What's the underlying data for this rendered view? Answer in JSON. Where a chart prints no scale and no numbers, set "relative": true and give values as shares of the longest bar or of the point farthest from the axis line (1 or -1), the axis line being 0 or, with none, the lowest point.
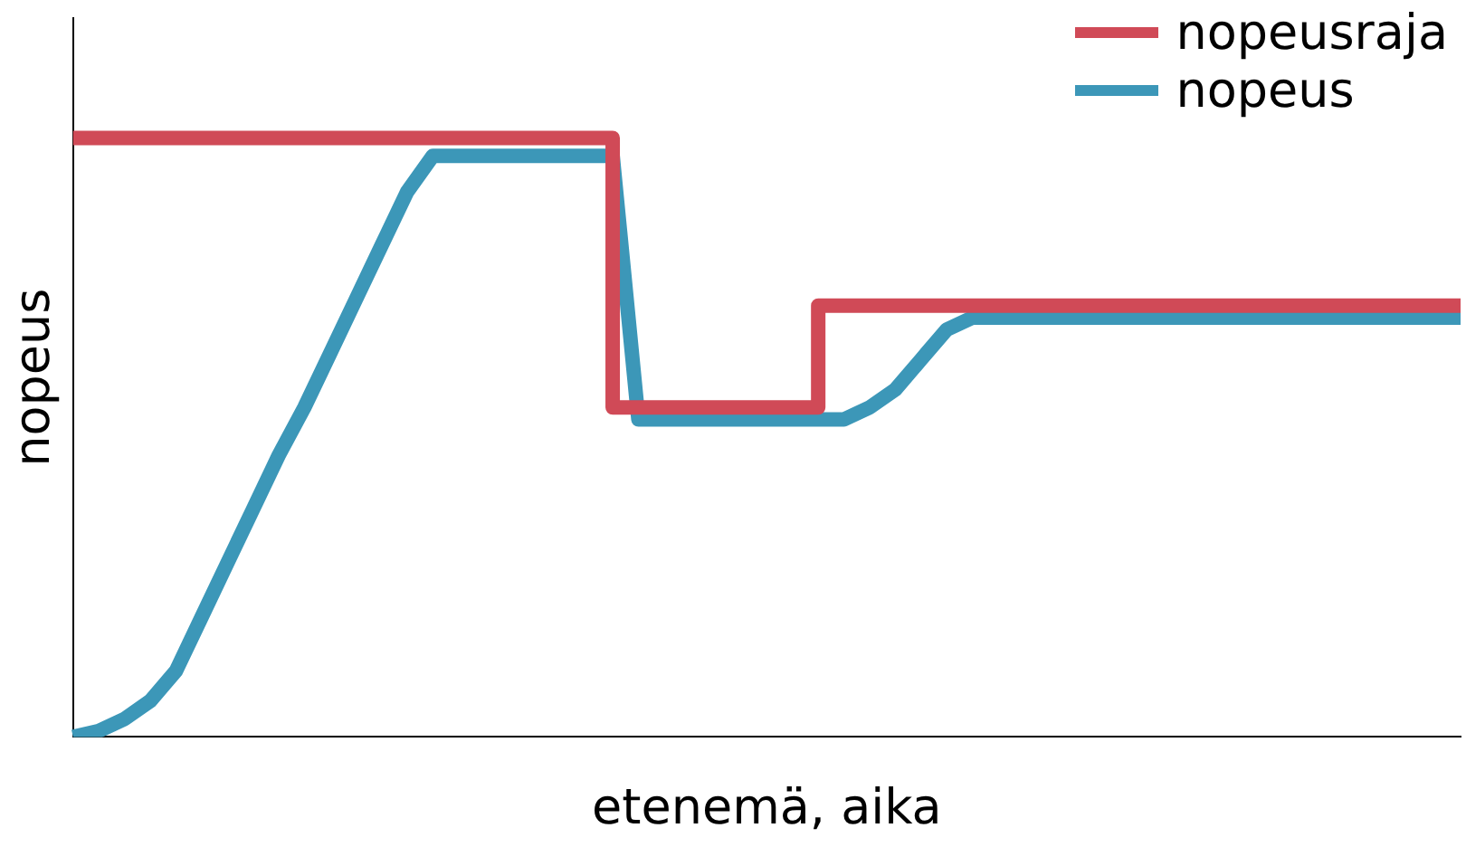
{
  "chart_data": {
    "type": "line",
    "relative": true,
    "xlabel": "etenemä, aika",
    "ylabel": "nopeus",
    "legend": "top right",
    "grid": false,
    "categories": [
      null,
      null,
      null,
      null,
      null,
      null,
      null,
      null,
      null,
      null,
      null,
      null,
      null,
      null,
      null,
      null,
      null,
      null,
      null,
      null,
      null,
      null,
      null,
      null,
      null,
      null,
      null,
      null,
      null,
      null,
      null,
      null,
      null,
      null,
      null,
      null,
      null,
      null,
      null,
      null,
      null,
      null,
      null,
      null,
      null,
      null,
      null,
      null,
      null,
      null,
      null,
      null,
      null,
      null,
      null
    ],
    "series": [
      {
        "name": "nopeusraja",
        "type": "step",
        "color": "#d04a57",
        "values": [
          1,
          1,
          1,
          1,
          1,
          1,
          1,
          1,
          1,
          1,
          1,
          1,
          1,
          1,
          1,
          1,
          1,
          1,
          1,
          1,
          1,
          1,
          0.55,
          0.55,
          0.55,
          0.55,
          0.55,
          0.55,
          0.55,
          0.55,
          0.72,
          0.72,
          0.72,
          0.72,
          0.72,
          0.72,
          0.72,
          0.72,
          0.72,
          0.72,
          0.72,
          0.72,
          0.72,
          0.72,
          0.72,
          0.72,
          0.72,
          0.72,
          0.72,
          0.72,
          0.72,
          0.72,
          0.72,
          0.72,
          0.72
        ]
      },
      {
        "name": "nopeus",
        "color": "#3c97b8",
        "values": [
          0,
          0.01,
          0.03,
          0.06,
          0.11,
          0.2,
          0.29,
          0.38,
          0.47,
          0.55,
          0.64,
          0.73,
          0.82,
          0.91,
          0.97,
          0.97,
          0.97,
          0.97,
          0.97,
          0.97,
          0.97,
          0.97,
          0.53,
          0.53,
          0.53,
          0.53,
          0.53,
          0.53,
          0.53,
          0.53,
          0.53,
          0.55,
          0.58,
          0.63,
          0.68,
          0.7,
          0.7,
          0.7,
          0.7,
          0.7,
          0.7,
          0.7,
          0.7,
          0.7,
          0.7,
          0.7,
          0.7,
          0.7,
          0.7,
          0.7,
          0.7,
          0.7,
          0.7,
          0.7,
          0.7
        ]
      }
    ]
  }
}
